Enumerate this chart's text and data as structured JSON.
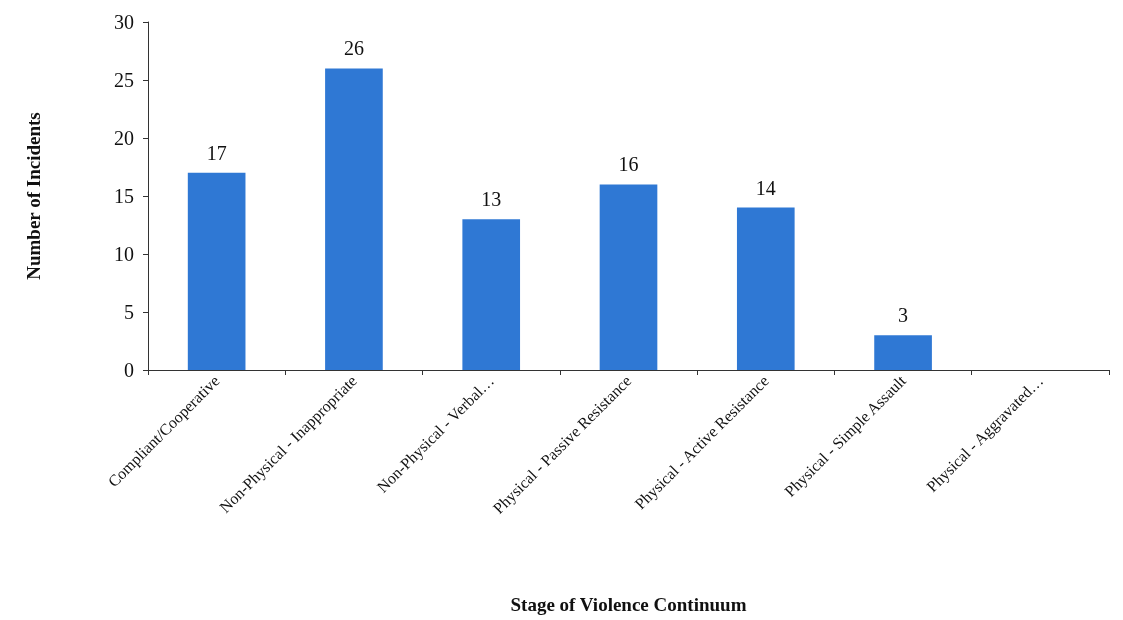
{
  "chart_data": {
    "type": "bar",
    "xlabel": "Stage of Violence Continuum",
    "ylabel": "Number of Incidents",
    "categories": [
      "Compliant/Cooperative",
      "Non-Physical - Inappropriate",
      "Non-Physical - Verbal…",
      "Physical - Passive Resistance",
      "Physical - Active Resistance",
      "Physical - Simple Assault",
      "Physical - Aggravated…"
    ],
    "values": [
      17,
      26,
      13,
      16,
      14,
      3,
      0
    ],
    "value_labels": [
      "17",
      "26",
      "13",
      "16",
      "14",
      "3",
      null
    ],
    "color": "#2f78d4",
    "ylim": [
      0,
      30
    ],
    "yticks": [
      0,
      5,
      10,
      15,
      20,
      25,
      30
    ],
    "grid": false
  }
}
